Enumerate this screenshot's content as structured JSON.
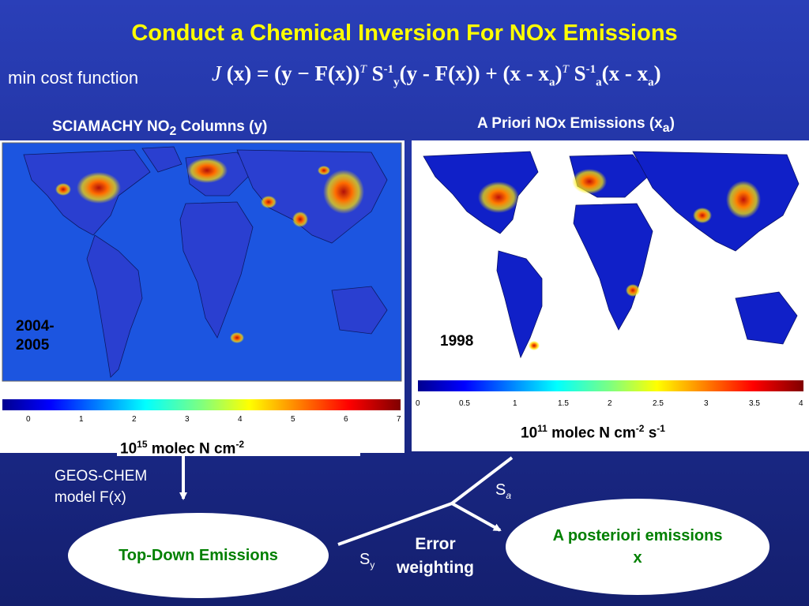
{
  "title": "Conduct a Chemical Inversion For NOx Emissions",
  "cost_label": "min cost function",
  "equation": {
    "J": "J",
    "x": "x",
    "eq": "=",
    "y": "y",
    "minus": "−",
    "F": "F",
    "T": "T",
    "S": "S",
    "inv": "-1",
    "sub_y": "y",
    "sub_a": "a",
    "dash": "-",
    "plus": "+"
  },
  "left_panel": {
    "title_pre": "SCIAMACHY NO",
    "title_sub": "2",
    "title_post": " Columns (y)",
    "year_line1": "2004-",
    "year_line2": "2005",
    "colorbar_ticks": [
      "0",
      "1",
      "2",
      "3",
      "4",
      "5",
      "6",
      "7"
    ],
    "unit_base": "10",
    "unit_exp": "15",
    "unit_text": " molec N cm",
    "unit_exp2": "-2"
  },
  "right_panel": {
    "title_pre": "A Priori NOx Emissions (x",
    "title_sub": "a",
    "title_post": ")",
    "year": "1998",
    "colorbar_ticks": [
      "0",
      "0.5",
      "1",
      "1.5",
      "2",
      "2.5",
      "3",
      "3.5",
      "4"
    ],
    "unit_base": "10",
    "unit_exp": "11",
    "unit_text": " molec N cm",
    "unit_exp2": "-2",
    "unit_text2": " s",
    "unit_exp3": "-1"
  },
  "flow": {
    "model_line1": "GEOS-CHEM",
    "model_line2": "model F(x)",
    "top_down": "Top-Down Emissions",
    "sy_base": "S",
    "sy_sub": "y",
    "sa_base": "S",
    "sa_sub": "a",
    "error_line1": "Error",
    "error_line2": "weighting",
    "posterior_line1": "A posteriori emissions",
    "posterior_line2": "x"
  },
  "colors": {
    "background": "#1e2f9a",
    "title": "#ffff00",
    "oval_text": "#008000",
    "map_ocean": "#1c4fd6",
    "map_land": "#1a2fc0",
    "hotspot": "#c81e14"
  }
}
